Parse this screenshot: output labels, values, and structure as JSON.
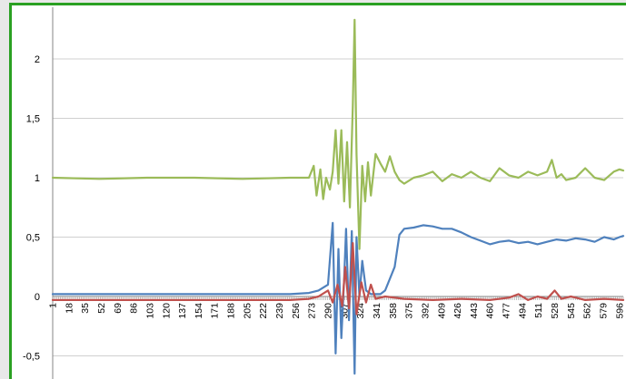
{
  "chart_data": {
    "type": "line",
    "title": "",
    "xlabel": "",
    "ylabel": "",
    "ylim": [
      -0.6,
      2.4
    ],
    "y_ticks": [
      -0.5,
      0,
      0.5,
      1,
      1.5,
      2
    ],
    "y_tick_labels": [
      "-0,5",
      "0",
      "0,5",
      "1",
      "1,5",
      "2"
    ],
    "x_range": [
      1,
      600
    ],
    "x_tick_labels": [
      "1",
      "18",
      "35",
      "52",
      "69",
      "86",
      "103",
      "120",
      "137",
      "154",
      "171",
      "188",
      "205",
      "222",
      "239",
      "256",
      "273",
      "290",
      "307",
      "324",
      "341",
      "358",
      "375",
      "392",
      "409",
      "426",
      "443",
      "460",
      "477",
      "494",
      "511",
      "528",
      "545",
      "562",
      "579",
      "596"
    ],
    "grid": "horizontal",
    "legend": "none",
    "series": [
      {
        "color": "#9bbb59",
        "x": [
          1,
          50,
          100,
          150,
          200,
          250,
          270,
          275,
          278,
          282,
          285,
          288,
          292,
          295,
          298,
          301,
          304,
          307,
          310,
          313,
          316,
          318,
          320,
          323,
          326,
          329,
          332,
          335,
          340,
          345,
          350,
          355,
          360,
          365,
          370,
          380,
          390,
          400,
          410,
          420,
          430,
          440,
          450,
          460,
          470,
          480,
          490,
          500,
          510,
          520,
          525,
          530,
          535,
          540,
          550,
          560,
          570,
          580,
          590,
          596,
          600
        ],
        "y": [
          1.0,
          0.99,
          1.0,
          1.0,
          0.99,
          1.0,
          1.0,
          1.1,
          0.85,
          1.07,
          0.82,
          1.0,
          0.9,
          1.05,
          1.4,
          0.95,
          1.4,
          0.8,
          1.3,
          0.75,
          1.6,
          2.33,
          1.2,
          0.4,
          1.1,
          0.8,
          1.13,
          0.85,
          1.2,
          1.12,
          1.05,
          1.18,
          1.05,
          0.98,
          0.95,
          1.0,
          1.02,
          1.05,
          0.97,
          1.03,
          1.0,
          1.05,
          1.0,
          0.97,
          1.08,
          1.02,
          1.0,
          1.05,
          1.02,
          1.05,
          1.15,
          1.0,
          1.03,
          0.98,
          1.0,
          1.08,
          1.0,
          0.98,
          1.05,
          1.07,
          1.06
        ]
      },
      {
        "color": "#4f81bd",
        "x": [
          1,
          50,
          100,
          150,
          200,
          250,
          270,
          280,
          290,
          295,
          298,
          301,
          304,
          307,
          309,
          312,
          315,
          318,
          320,
          323,
          326,
          330,
          335,
          340,
          345,
          350,
          360,
          365,
          370,
          380,
          390,
          400,
          410,
          420,
          430,
          440,
          450,
          460,
          470,
          480,
          490,
          500,
          510,
          520,
          530,
          540,
          550,
          560,
          570,
          580,
          590,
          596,
          600
        ],
        "y": [
          0.02,
          0.02,
          0.02,
          0.02,
          0.02,
          0.02,
          0.03,
          0.05,
          0.1,
          0.62,
          -0.48,
          0.4,
          -0.35,
          0.15,
          0.57,
          -0.2,
          0.55,
          -0.65,
          0.5,
          0.0,
          0.3,
          0.05,
          0.02,
          0.02,
          0.02,
          0.05,
          0.25,
          0.52,
          0.57,
          0.58,
          0.6,
          0.59,
          0.57,
          0.57,
          0.54,
          0.5,
          0.47,
          0.44,
          0.46,
          0.47,
          0.45,
          0.46,
          0.44,
          0.46,
          0.48,
          0.47,
          0.49,
          0.48,
          0.46,
          0.5,
          0.48,
          0.5,
          0.51
        ]
      },
      {
        "color": "#c0504d",
        "x": [
          1,
          50,
          100,
          150,
          200,
          250,
          270,
          280,
          290,
          295,
          300,
          305,
          308,
          312,
          316,
          320,
          325,
          330,
          335,
          340,
          350,
          370,
          400,
          430,
          460,
          480,
          490,
          500,
          510,
          520,
          528,
          535,
          545,
          560,
          580,
          600
        ],
        "y": [
          -0.03,
          -0.03,
          -0.03,
          -0.03,
          -0.03,
          -0.03,
          -0.02,
          0.0,
          0.05,
          -0.05,
          0.1,
          -0.08,
          0.25,
          -0.1,
          0.45,
          -0.15,
          0.12,
          -0.05,
          0.1,
          -0.02,
          0.0,
          -0.02,
          -0.03,
          -0.02,
          -0.03,
          -0.01,
          0.02,
          -0.03,
          0.0,
          -0.02,
          0.05,
          -0.02,
          0.0,
          -0.03,
          -0.02,
          -0.03
        ]
      }
    ]
  }
}
